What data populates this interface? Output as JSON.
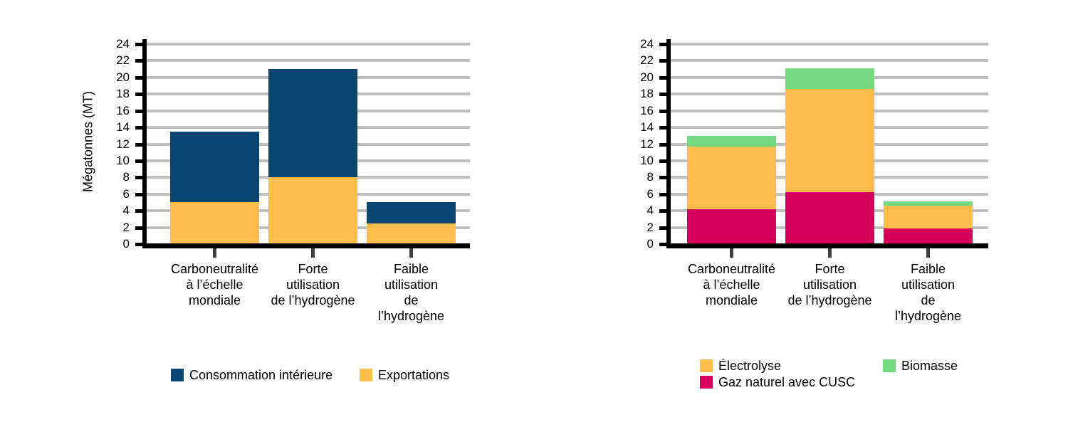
{
  "colors": {
    "background": "#FFFFFF",
    "navy": "#074670",
    "gold": "#FFBE4B",
    "raspberry": "#D6005C",
    "green": "#75D981",
    "grid_color": "#BFBFBF",
    "axis_color": "#000000",
    "x_tick_color": "#3F3F3F",
    "text_color": "#000000"
  },
  "chart_data": [
    {
      "type": "bar",
      "stacked": true,
      "title": "",
      "xlabel": "",
      "ylabel": "Mégatonnes (MT)",
      "ylim": [
        0,
        24
      ],
      "yticks": [
        0,
        2,
        4,
        6,
        8,
        10,
        12,
        14,
        16,
        18,
        20,
        22,
        24
      ],
      "grid": "horizontal",
      "legend_position": "bottom",
      "categories": [
        [
          "Carboneutralité",
          "à l’échelle",
          "mondiale"
        ],
        [
          "Forte",
          "utilisation",
          "de l’hydrogène"
        ],
        [
          "Faible",
          "utilisation",
          "de",
          "l’hydrogène"
        ]
      ],
      "series": [
        {
          "name": "Exportations",
          "color": "#FFBE4B",
          "values": [
            5.0,
            8.0,
            2.5
          ]
        },
        {
          "name": "Consommation intérieure",
          "color": "#074670",
          "values": [
            8.5,
            13.0,
            2.5
          ]
        }
      ],
      "legend_rows": [
        [
          {
            "label": "Consommation intérieure",
            "color": "#074670"
          },
          {
            "label": "Exportations",
            "color": "#FFBE4B"
          }
        ]
      ]
    },
    {
      "type": "bar",
      "stacked": true,
      "title": "",
      "xlabel": "",
      "ylabel": "",
      "ylim": [
        0,
        24
      ],
      "yticks": [
        0,
        2,
        4,
        6,
        8,
        10,
        12,
        14,
        16,
        18,
        20,
        22,
        24
      ],
      "grid": "horizontal",
      "legend_position": "bottom",
      "categories": [
        [
          "Carboneutralité",
          "à l’échelle",
          "mondiale"
        ],
        [
          "Forte",
          "utilisation",
          "de l’hydrogène"
        ],
        [
          "Faible",
          "utilisation",
          "de",
          "l’hydrogène"
        ]
      ],
      "series": [
        {
          "name": "Gaz naturel avec CUSC",
          "color": "#D6005C",
          "values": [
            4.2,
            6.2,
            1.9
          ]
        },
        {
          "name": "Électrolyse",
          "color": "#FFBE4B",
          "values": [
            7.5,
            12.4,
            2.7
          ]
        },
        {
          "name": "Biomasse",
          "color": "#75D981",
          "values": [
            1.3,
            2.5,
            0.5
          ]
        }
      ],
      "legend_rows": [
        [
          {
            "label": "Électrolyse",
            "color": "#FFBE4B"
          },
          {
            "label": "Biomasse",
            "color": "#75D981"
          }
        ],
        [
          {
            "label": "Gaz naturel avec CUSC",
            "color": "#D6005C"
          }
        ]
      ]
    }
  ]
}
